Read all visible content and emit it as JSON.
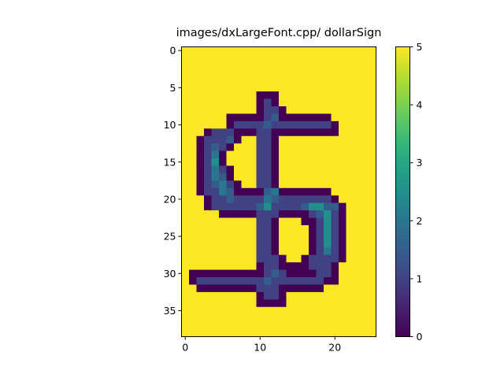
{
  "chart_data": {
    "type": "heatmap",
    "title": "images/dxLargeFont.cpp/ dollarSign",
    "xlabel": "",
    "ylabel": "",
    "n_cols": 26,
    "n_rows": 39,
    "xlim": [
      -0.5,
      25.5
    ],
    "ylim": [
      38.5,
      -0.5
    ],
    "x_ticks": [
      0,
      10,
      20
    ],
    "x_tick_labels": [
      "0",
      "10",
      "20"
    ],
    "y_ticks": [
      0,
      5,
      10,
      15,
      20,
      25,
      30,
      35
    ],
    "y_tick_labels": [
      "0",
      "5",
      "10",
      "15",
      "20",
      "25",
      "30",
      "35"
    ],
    "colormap": "viridis",
    "colorbar": {
      "min": 0,
      "max": 5,
      "ticks": [
        0,
        1,
        2,
        3,
        4,
        5
      ],
      "tick_labels": [
        "0",
        "1",
        "2",
        "3",
        "4",
        "5"
      ]
    },
    "background_value": 5,
    "grid": false,
    "legend": "none",
    "cell_runs_note": "row index -> list of [col_start, col_end, value] runs; unlisted cells equal background_value",
    "cell_runs": {
      "6": [
        [
          10,
          12,
          0
        ]
      ],
      "7": [
        [
          10,
          10,
          0
        ],
        [
          11,
          11,
          1
        ],
        [
          12,
          12,
          0
        ]
      ],
      "8": [
        [
          10,
          10,
          0
        ],
        [
          11,
          12,
          1
        ],
        [
          13,
          13,
          0
        ]
      ],
      "9": [
        [
          6,
          10,
          0
        ],
        [
          11,
          11,
          1
        ],
        [
          12,
          12,
          1.5
        ],
        [
          13,
          19,
          0
        ]
      ],
      "10": [
        [
          6,
          6,
          0
        ],
        [
          7,
          7,
          1
        ],
        [
          8,
          10,
          1
        ],
        [
          11,
          11,
          1.5
        ],
        [
          12,
          19,
          1
        ],
        [
          20,
          20,
          0
        ]
      ],
      "11": [
        [
          3,
          3,
          0
        ],
        [
          4,
          6,
          1
        ],
        [
          7,
          9,
          0
        ],
        [
          10,
          11,
          1
        ],
        [
          12,
          12,
          0
        ],
        [
          13,
          20,
          0
        ]
      ],
      "12": [
        [
          2,
          2,
          0
        ],
        [
          3,
          5,
          1
        ],
        [
          6,
          6,
          1.5
        ],
        [
          7,
          7,
          0
        ],
        [
          10,
          11,
          1
        ],
        [
          12,
          12,
          0
        ]
      ],
      "13": [
        [
          2,
          2,
          0
        ],
        [
          3,
          3,
          1
        ],
        [
          4,
          4,
          1.5
        ],
        [
          5,
          5,
          1
        ],
        [
          6,
          6,
          0
        ],
        [
          10,
          11,
          1
        ],
        [
          12,
          12,
          0
        ]
      ],
      "14": [
        [
          2,
          2,
          0
        ],
        [
          3,
          3,
          1
        ],
        [
          4,
          4,
          2
        ],
        [
          5,
          5,
          0
        ],
        [
          10,
          11,
          1
        ],
        [
          12,
          12,
          0
        ]
      ],
      "15": [
        [
          2,
          2,
          0
        ],
        [
          3,
          3,
          1
        ],
        [
          4,
          4,
          2.5
        ],
        [
          5,
          5,
          0
        ],
        [
          10,
          11,
          1
        ],
        [
          12,
          12,
          0
        ]
      ],
      "16": [
        [
          2,
          2,
          0
        ],
        [
          3,
          3,
          1
        ],
        [
          4,
          4,
          2
        ],
        [
          5,
          5,
          1
        ],
        [
          6,
          6,
          0
        ],
        [
          10,
          11,
          1
        ],
        [
          12,
          12,
          0
        ]
      ],
      "17": [
        [
          2,
          2,
          0
        ],
        [
          3,
          3,
          1
        ],
        [
          4,
          4,
          2
        ],
        [
          5,
          5,
          1.5
        ],
        [
          6,
          6,
          0
        ],
        [
          10,
          11,
          1
        ],
        [
          12,
          12,
          0
        ]
      ],
      "18": [
        [
          2,
          2,
          0
        ],
        [
          3,
          3,
          1
        ],
        [
          4,
          4,
          1.5
        ],
        [
          5,
          5,
          2
        ],
        [
          6,
          6,
          1
        ],
        [
          7,
          7,
          0
        ],
        [
          10,
          11,
          1
        ],
        [
          12,
          12,
          0
        ]
      ],
      "19": [
        [
          2,
          2,
          0
        ],
        [
          3,
          4,
          1
        ],
        [
          5,
          5,
          2
        ],
        [
          6,
          6,
          1.5
        ],
        [
          7,
          10,
          0
        ],
        [
          11,
          11,
          1.5
        ],
        [
          12,
          12,
          2
        ],
        [
          13,
          19,
          0
        ]
      ],
      "20": [
        [
          3,
          3,
          0
        ],
        [
          4,
          5,
          1
        ],
        [
          6,
          6,
          1.5
        ],
        [
          7,
          10,
          1
        ],
        [
          11,
          11,
          2
        ],
        [
          12,
          12,
          1.5
        ],
        [
          13,
          19,
          1
        ],
        [
          20,
          20,
          0
        ]
      ],
      "21": [
        [
          3,
          3,
          0
        ],
        [
          4,
          9,
          1
        ],
        [
          10,
          10,
          1.5
        ],
        [
          11,
          11,
          2.5
        ],
        [
          12,
          15,
          1
        ],
        [
          16,
          16,
          1.5
        ],
        [
          17,
          18,
          2.5
        ],
        [
          19,
          20,
          1.5
        ],
        [
          21,
          21,
          0
        ]
      ],
      "22": [
        [
          5,
          9,
          0
        ],
        [
          10,
          11,
          1
        ],
        [
          12,
          12,
          1
        ],
        [
          13,
          15,
          0
        ],
        [
          16,
          16,
          0
        ],
        [
          17,
          17,
          1
        ],
        [
          18,
          18,
          1.5
        ],
        [
          19,
          19,
          2.5
        ],
        [
          20,
          20,
          1
        ],
        [
          21,
          21,
          0
        ]
      ],
      "23": [
        [
          10,
          11,
          1
        ],
        [
          12,
          12,
          0
        ],
        [
          16,
          16,
          0
        ],
        [
          17,
          17,
          0
        ],
        [
          18,
          18,
          1
        ],
        [
          19,
          19,
          2.5
        ],
        [
          20,
          20,
          1
        ],
        [
          21,
          21,
          0
        ]
      ],
      "24": [
        [
          10,
          11,
          1
        ],
        [
          12,
          12,
          0
        ],
        [
          17,
          17,
          0
        ],
        [
          18,
          18,
          1
        ],
        [
          19,
          19,
          2.5
        ],
        [
          20,
          20,
          1
        ],
        [
          21,
          21,
          0
        ]
      ],
      "25": [
        [
          10,
          11,
          1
        ],
        [
          12,
          12,
          0
        ],
        [
          17,
          17,
          0
        ],
        [
          18,
          18,
          1
        ],
        [
          19,
          19,
          2.5
        ],
        [
          20,
          20,
          1
        ],
        [
          21,
          21,
          0
        ]
      ],
      "26": [
        [
          10,
          11,
          1
        ],
        [
          12,
          12,
          0
        ],
        [
          17,
          17,
          0
        ],
        [
          18,
          18,
          1
        ],
        [
          19,
          19,
          2.5
        ],
        [
          20,
          20,
          1
        ],
        [
          21,
          21,
          0
        ]
      ],
      "27": [
        [
          10,
          11,
          1
        ],
        [
          12,
          12,
          0
        ],
        [
          17,
          17,
          0
        ],
        [
          18,
          18,
          1
        ],
        [
          19,
          19,
          2
        ],
        [
          20,
          20,
          1
        ],
        [
          21,
          21,
          0
        ]
      ],
      "28": [
        [
          10,
          11,
          1
        ],
        [
          12,
          12,
          1
        ],
        [
          13,
          13,
          0
        ],
        [
          16,
          16,
          0
        ],
        [
          17,
          17,
          1
        ],
        [
          18,
          19,
          1
        ],
        [
          20,
          20,
          1
        ],
        [
          21,
          21,
          0
        ]
      ],
      "29": [
        [
          10,
          10,
          0
        ],
        [
          11,
          11,
          1
        ],
        [
          12,
          12,
          1
        ],
        [
          13,
          15,
          0
        ],
        [
          16,
          16,
          0
        ],
        [
          17,
          19,
          1
        ],
        [
          20,
          20,
          0
        ]
      ],
      "30": [
        [
          1,
          10,
          0
        ],
        [
          11,
          11,
          1
        ],
        [
          12,
          12,
          1.5
        ],
        [
          13,
          13,
          1
        ],
        [
          14,
          17,
          0
        ],
        [
          18,
          19,
          1
        ],
        [
          20,
          20,
          0
        ]
      ],
      "31": [
        [
          1,
          1,
          0
        ],
        [
          2,
          9,
          1
        ],
        [
          10,
          10,
          1
        ],
        [
          11,
          11,
          1.5
        ],
        [
          12,
          17,
          1
        ],
        [
          18,
          18,
          1
        ],
        [
          19,
          20,
          0
        ]
      ],
      "32": [
        [
          2,
          9,
          0
        ],
        [
          10,
          11,
          1
        ],
        [
          12,
          12,
          1
        ],
        [
          13,
          18,
          0
        ]
      ],
      "33": [
        [
          10,
          10,
          0
        ],
        [
          11,
          12,
          1
        ],
        [
          13,
          13,
          0
        ]
      ],
      "34": [
        [
          10,
          13,
          0
        ]
      ]
    }
  }
}
